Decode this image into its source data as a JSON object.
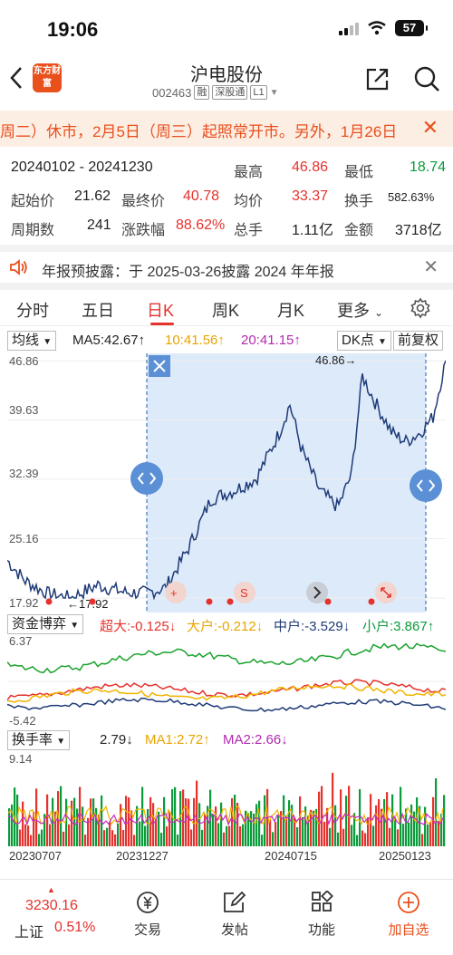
{
  "status": {
    "time": "19:06",
    "battery": "57"
  },
  "header": {
    "logo_text": "东方财富",
    "stock_name": "沪电股份",
    "stock_code": "002463",
    "tags": [
      "融",
      "深股通",
      "L1"
    ]
  },
  "banner": {
    "text": "周二）休市，2月5日（周三）起照常开市。另外，1月26日（"
  },
  "stats": {
    "date_range": "20240102 - 20241230",
    "high_label": "最高",
    "high": "46.86",
    "low_label": "最低",
    "low": "18.74",
    "start_label": "起始价",
    "start": "21.62",
    "end_label": "最终价",
    "end": "40.78",
    "avg_label": "均价",
    "avg": "33.37",
    "turnover_label": "换手",
    "turnover": "582.63%",
    "periods_label": "周期数",
    "periods": "241",
    "change_label": "涨跌幅",
    "change": "88.62%",
    "volume_label": "总手",
    "volume": "1.11亿",
    "amount_label": "金额",
    "amount": "3718亿"
  },
  "report": {
    "text": "年报预披露：于 2025-03-26披露 2024 年年报"
  },
  "tabs": [
    "分时",
    "五日",
    "日K",
    "周K",
    "月K",
    "更多"
  ],
  "active_tab": "日K",
  "chart_toolbar": {
    "indicator": "均线",
    "ma5": "MA5:42.67↑",
    "ma10": "10:41.56↑",
    "ma20": "20:41.15↑",
    "dk": "DK点",
    "adjust": "前复权"
  },
  "main_chart": {
    "y_ticks": [
      "46.86",
      "39.63",
      "32.39",
      "25.16",
      "17.92"
    ],
    "high_marker": "46.86→",
    "low_marker": "←17.92",
    "colors": {
      "line": "#1f3b77",
      "selection": "#dceafa",
      "up": "#e5322d",
      "down": "#0a9b3a"
    }
  },
  "fund_bar": {
    "indicator": "资金博弈",
    "super": "超大:-0.125↓",
    "large": "大户:-0.212↓",
    "mid": "中户:-3.529↓",
    "small": "小户:3.867↑",
    "top": "6.37",
    "bottom": "-5.42"
  },
  "turnover_bar": {
    "indicator": "换手率",
    "value": "2.79↓",
    "ma1": "MA1:2.72↑",
    "ma2": "MA2:2.66↓",
    "top": "9.14"
  },
  "x_dates": [
    "20230707",
    "20231227",
    "20240715",
    "20250123"
  ],
  "bottom_nav": {
    "index_value": "3230.16",
    "index_name": "上证",
    "index_change": "0.51%",
    "items": [
      "交易",
      "发帖",
      "功能",
      "加自选"
    ]
  }
}
